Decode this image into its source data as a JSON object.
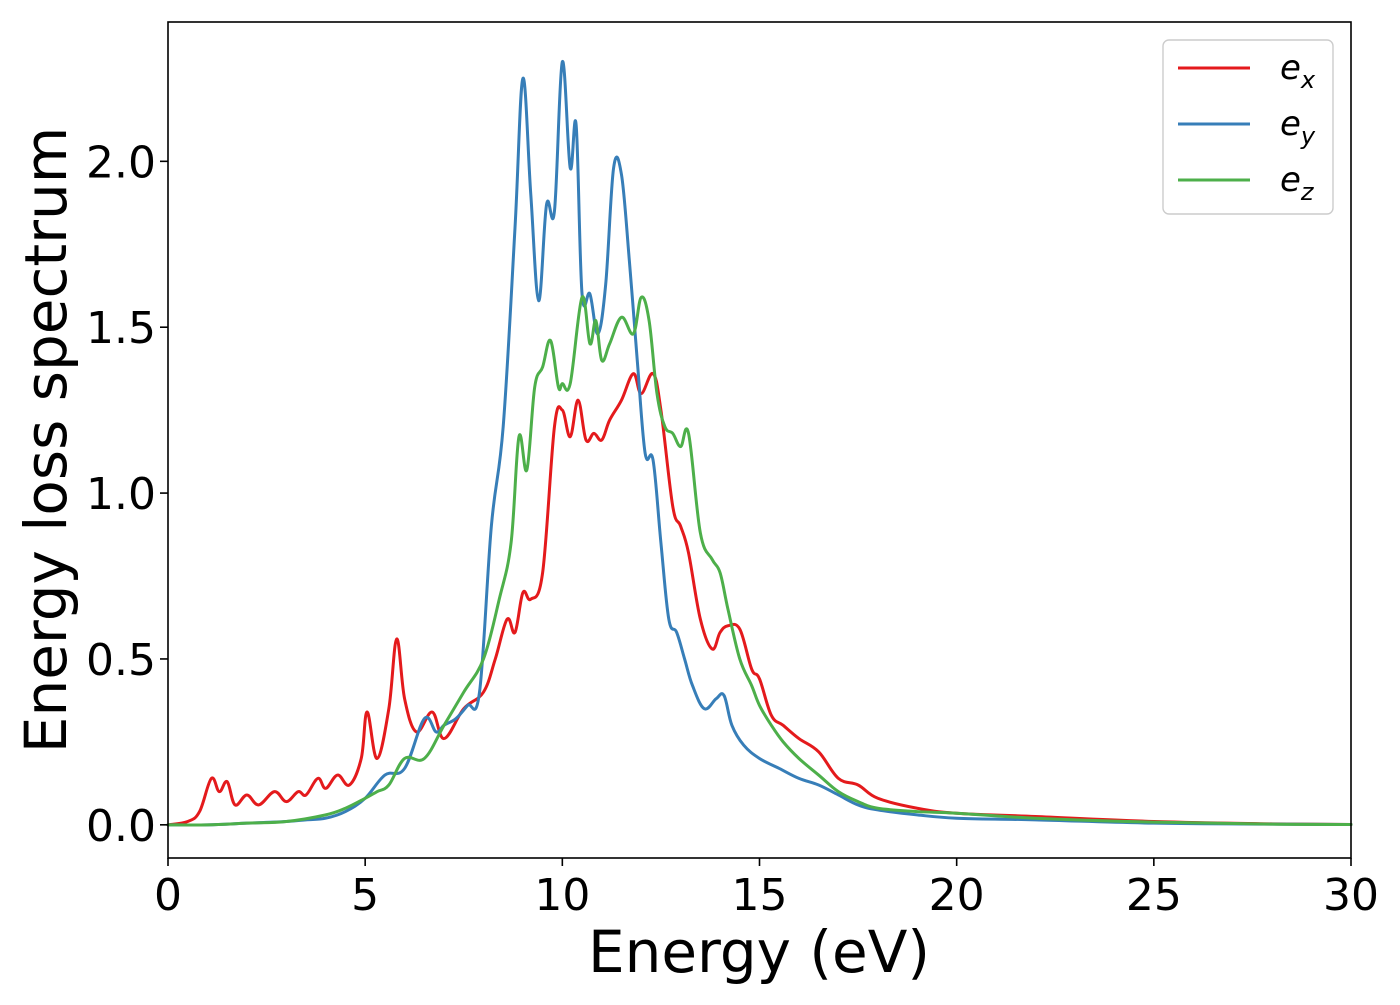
{
  "chart_data": {
    "type": "line",
    "title": "",
    "xlabel": "Energy (eV)",
    "ylabel": "Energy loss spectrum",
    "xlim": [
      0,
      30
    ],
    "ylim": [
      -0.1,
      2.42
    ],
    "xticks": [
      0,
      5,
      10,
      15,
      20,
      25,
      30
    ],
    "yticks": [
      0.0,
      0.5,
      1.0,
      1.5,
      2.0
    ],
    "xtick_labels": [
      "0",
      "5",
      "10",
      "15",
      "20",
      "25",
      "30"
    ],
    "ytick_labels": [
      "0.0",
      "0.5",
      "1.0",
      "1.5",
      "2.0"
    ],
    "grid": false,
    "legend_position": "top-right",
    "series": [
      {
        "name": "e_x",
        "label_base": "e",
        "label_sub": "x",
        "color": "#e41a1c",
        "x": [
          0,
          0.5,
          0.8,
          1.1,
          1.3,
          1.5,
          1.7,
          2.0,
          2.3,
          2.7,
          3.0,
          3.3,
          3.5,
          3.8,
          4.0,
          4.3,
          4.6,
          4.9,
          5.05,
          5.3,
          5.6,
          5.8,
          6.0,
          6.3,
          6.7,
          7.0,
          7.5,
          8.0,
          8.3,
          8.6,
          8.8,
          9.0,
          9.2,
          9.5,
          9.8,
          10.0,
          10.2,
          10.4,
          10.6,
          10.8,
          11.0,
          11.2,
          11.5,
          11.8,
          12.0,
          12.3,
          12.5,
          12.8,
          13.0,
          13.2,
          13.5,
          13.8,
          14.0,
          14.2,
          14.5,
          14.8,
          15.0,
          15.3,
          15.6,
          16.0,
          16.5,
          17.0,
          17.5,
          18.0,
          19.0,
          20.0,
          22.0,
          25.0,
          28.0,
          30.0
        ],
        "y": [
          0.0,
          0.01,
          0.04,
          0.14,
          0.1,
          0.13,
          0.06,
          0.09,
          0.06,
          0.1,
          0.07,
          0.1,
          0.09,
          0.14,
          0.11,
          0.15,
          0.12,
          0.2,
          0.34,
          0.2,
          0.35,
          0.56,
          0.38,
          0.28,
          0.34,
          0.26,
          0.35,
          0.4,
          0.5,
          0.62,
          0.58,
          0.7,
          0.68,
          0.76,
          1.2,
          1.25,
          1.17,
          1.28,
          1.16,
          1.18,
          1.16,
          1.22,
          1.28,
          1.36,
          1.3,
          1.36,
          1.25,
          0.96,
          0.9,
          0.82,
          0.62,
          0.53,
          0.58,
          0.6,
          0.59,
          0.47,
          0.44,
          0.33,
          0.3,
          0.26,
          0.22,
          0.14,
          0.12,
          0.08,
          0.05,
          0.035,
          0.025,
          0.01,
          0.003,
          0.001
        ]
      },
      {
        "name": "e_y",
        "label_base": "e",
        "label_sub": "y",
        "color": "#377eb8",
        "x": [
          0,
          1.0,
          2.0,
          3.0,
          3.5,
          4.0,
          4.5,
          5.0,
          5.5,
          6.0,
          6.5,
          6.8,
          7.0,
          7.3,
          7.6,
          7.9,
          8.2,
          8.5,
          8.8,
          9.0,
          9.2,
          9.4,
          9.6,
          9.8,
          10.0,
          10.2,
          10.35,
          10.5,
          10.7,
          10.9,
          11.1,
          11.3,
          11.5,
          11.7,
          11.9,
          12.1,
          12.3,
          12.5,
          12.7,
          12.9,
          13.1,
          13.3,
          13.6,
          13.9,
          14.1,
          14.3,
          14.6,
          15.0,
          15.5,
          16.0,
          16.5,
          17.0,
          17.5,
          18.0,
          19.0,
          20.0,
          22.0,
          25.0,
          28.0,
          30.0
        ],
        "y": [
          0.0,
          0.0,
          0.005,
          0.01,
          0.015,
          0.02,
          0.04,
          0.08,
          0.15,
          0.17,
          0.32,
          0.28,
          0.3,
          0.32,
          0.36,
          0.4,
          0.9,
          1.2,
          1.8,
          2.25,
          1.9,
          1.58,
          1.87,
          1.85,
          2.3,
          1.98,
          2.11,
          1.6,
          1.6,
          1.48,
          1.63,
          1.98,
          1.96,
          1.7,
          1.4,
          1.12,
          1.1,
          0.85,
          0.62,
          0.58,
          0.5,
          0.42,
          0.35,
          0.38,
          0.39,
          0.3,
          0.24,
          0.2,
          0.17,
          0.14,
          0.12,
          0.09,
          0.06,
          0.045,
          0.03,
          0.02,
          0.015,
          0.005,
          0.002,
          0.001
        ]
      },
      {
        "name": "e_z",
        "label_base": "e",
        "label_sub": "z",
        "color": "#4daf4a",
        "x": [
          0,
          1.0,
          2.0,
          3.0,
          4.0,
          4.5,
          5.0,
          5.3,
          5.6,
          6.0,
          6.5,
          7.0,
          7.5,
          8.0,
          8.4,
          8.7,
          8.9,
          9.1,
          9.3,
          9.5,
          9.7,
          9.9,
          10.0,
          10.2,
          10.5,
          10.7,
          10.85,
          11.0,
          11.2,
          11.5,
          11.8,
          12.0,
          12.2,
          12.4,
          12.6,
          12.8,
          13.0,
          13.2,
          13.5,
          13.8,
          14.0,
          14.2,
          14.5,
          14.8,
          15.0,
          15.3,
          15.6,
          16.0,
          16.5,
          17.0,
          17.5,
          18.0,
          19.0,
          20.0,
          22.0,
          25.0,
          28.0,
          30.0
        ],
        "y": [
          0.0,
          0.0,
          0.005,
          0.01,
          0.03,
          0.05,
          0.08,
          0.1,
          0.12,
          0.2,
          0.2,
          0.3,
          0.4,
          0.5,
          0.68,
          0.85,
          1.17,
          1.07,
          1.32,
          1.38,
          1.46,
          1.32,
          1.33,
          1.33,
          1.59,
          1.45,
          1.52,
          1.4,
          1.45,
          1.53,
          1.48,
          1.59,
          1.52,
          1.3,
          1.2,
          1.18,
          1.14,
          1.18,
          0.88,
          0.8,
          0.76,
          0.65,
          0.5,
          0.42,
          0.36,
          0.3,
          0.25,
          0.2,
          0.15,
          0.1,
          0.07,
          0.05,
          0.04,
          0.035,
          0.02,
          0.008,
          0.002,
          0.001
        ]
      }
    ]
  }
}
